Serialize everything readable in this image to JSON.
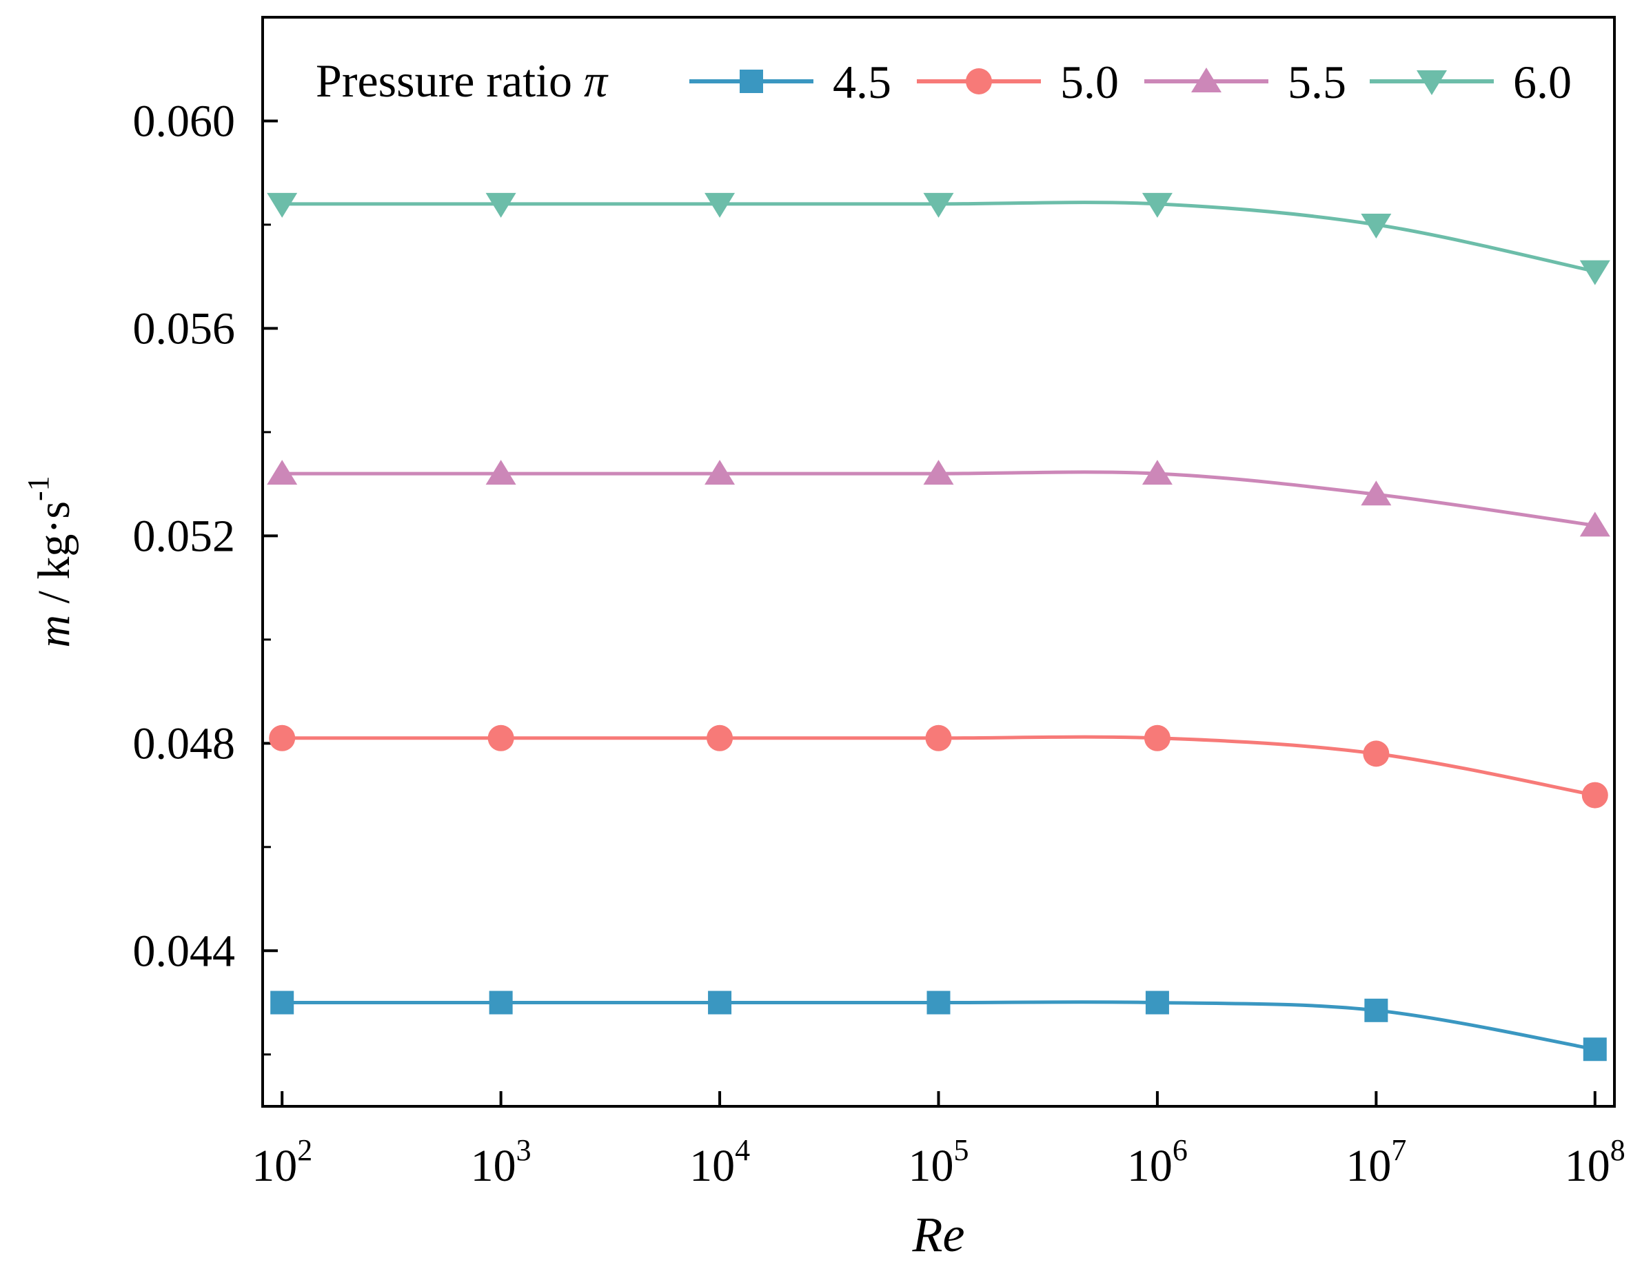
{
  "chart_data": {
    "type": "line",
    "xscale": "log",
    "x": [
      100,
      1000,
      10000,
      100000,
      1000000,
      10000000,
      100000000
    ],
    "x_tick_labels": [
      {
        "base": "10",
        "exp": "2"
      },
      {
        "base": "10",
        "exp": "3"
      },
      {
        "base": "10",
        "exp": "4"
      },
      {
        "base": "10",
        "exp": "5"
      },
      {
        "base": "10",
        "exp": "6"
      },
      {
        "base": "10",
        "exp": "7"
      },
      {
        "base": "10",
        "exp": "8"
      }
    ],
    "xlabel": "Re",
    "ylabel": {
      "symbol": "m",
      "unit": " / kg·s",
      "exp": "-1"
    },
    "ylim": [
      0.041,
      0.062
    ],
    "y_ticks": [
      0.044,
      0.048,
      0.052,
      0.056,
      0.06
    ],
    "y_tick_labels": [
      "0.044",
      "0.048",
      "0.052",
      "0.056",
      "0.060"
    ],
    "legend": {
      "title": "Pressure ratio",
      "title_symbol": "π",
      "location": "top"
    },
    "series": [
      {
        "name": "4.5",
        "color": "#3a97c1",
        "marker": "square",
        "values": [
          0.043,
          0.043,
          0.043,
          0.043,
          0.043,
          0.04285,
          0.0421
        ]
      },
      {
        "name": "5.0",
        "color": "#f77a78",
        "marker": "circle",
        "values": [
          0.0481,
          0.0481,
          0.0481,
          0.0481,
          0.0481,
          0.0478,
          0.047
        ]
      },
      {
        "name": "5.5",
        "color": "#cc87b8",
        "marker": "triangle-up",
        "values": [
          0.0532,
          0.0532,
          0.0532,
          0.0532,
          0.0532,
          0.0528,
          0.0522
        ]
      },
      {
        "name": "6.0",
        "color": "#6cbda9",
        "marker": "triangle-down",
        "values": [
          0.0584,
          0.0584,
          0.0584,
          0.0584,
          0.0584,
          0.058,
          0.0571
        ]
      }
    ]
  }
}
